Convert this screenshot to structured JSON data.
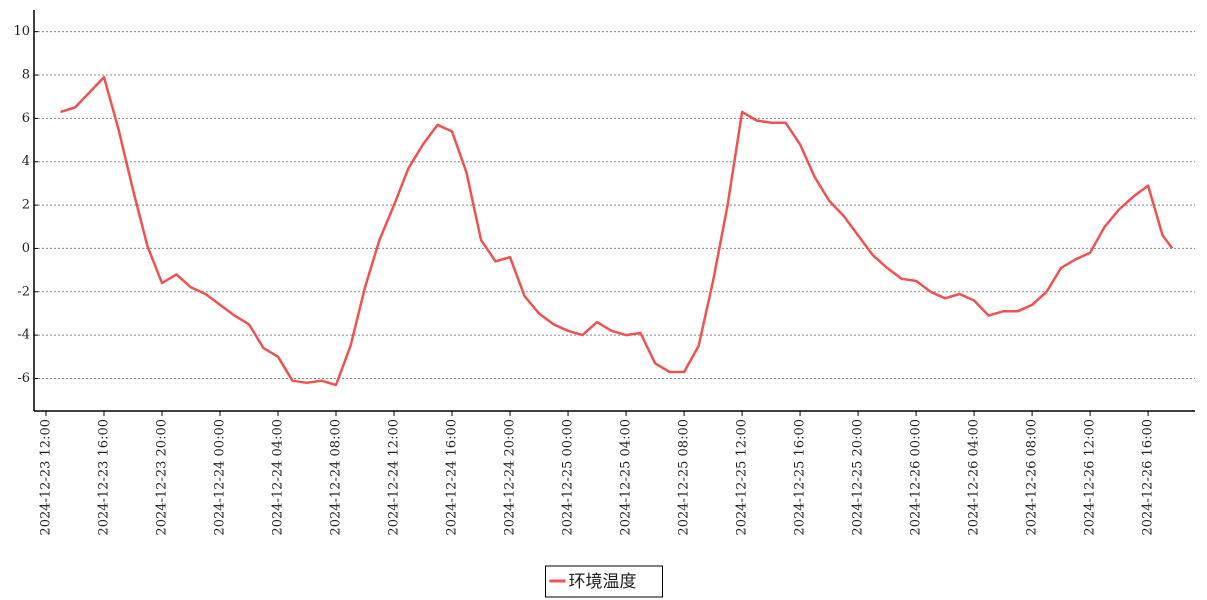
{
  "chart_data": {
    "type": "line",
    "xlim": [
      "2024-12-23 11:27",
      "2024-12-26 19:14"
    ],
    "ylim": [
      -7.5,
      11
    ],
    "xticks": [
      "2024-12-23 12:00",
      "2024-12-23 16:00",
      "2024-12-23 20:00",
      "2024-12-24 00:00",
      "2024-12-24 04:00",
      "2024-12-24 08:00",
      "2024-12-24 12:00",
      "2024-12-24 16:00",
      "2024-12-24 20:00",
      "2024-12-25 00:00",
      "2024-12-25 04:00",
      "2024-12-25 08:00",
      "2024-12-25 12:00",
      "2024-12-25 16:00",
      "2024-12-25 20:00",
      "2024-12-26 00:00",
      "2024-12-26 04:00",
      "2024-12-26 08:00",
      "2024-12-26 12:00",
      "2024-12-26 16:00"
    ],
    "yticks": [
      -6,
      -4,
      -2,
      0,
      2,
      4,
      6,
      8,
      10
    ],
    "grid": true,
    "legend": "bottom",
    "x": [
      "2024-12-23 13:00",
      "2024-12-23 14:00",
      "2024-12-23 15:00",
      "2024-12-23 16:00",
      "2024-12-23 17:00",
      "2024-12-23 18:00",
      "2024-12-23 19:00",
      "2024-12-23 20:00",
      "2024-12-23 21:00",
      "2024-12-23 22:00",
      "2024-12-23 23:00",
      "2024-12-24 00:00",
      "2024-12-24 01:00",
      "2024-12-24 02:00",
      "2024-12-24 03:00",
      "2024-12-24 04:00",
      "2024-12-24 05:00",
      "2024-12-24 06:00",
      "2024-12-24 07:00",
      "2024-12-24 08:00",
      "2024-12-24 09:00",
      "2024-12-24 10:00",
      "2024-12-24 11:00",
      "2024-12-24 12:00",
      "2024-12-24 13:00",
      "2024-12-24 14:00",
      "2024-12-24 15:00",
      "2024-12-24 16:00",
      "2024-12-24 17:00",
      "2024-12-24 18:00",
      "2024-12-24 19:00",
      "2024-12-24 20:00",
      "2024-12-24 21:00",
      "2024-12-24 22:00",
      "2024-12-24 23:00",
      "2024-12-25 00:00",
      "2024-12-25 01:00",
      "2024-12-25 02:00",
      "2024-12-25 03:00",
      "2024-12-25 04:00",
      "2024-12-25 05:00",
      "2024-12-25 06:00",
      "2024-12-25 07:00",
      "2024-12-25 08:00",
      "2024-12-25 09:00",
      "2024-12-25 10:00",
      "2024-12-25 11:00",
      "2024-12-25 12:00",
      "2024-12-25 13:00",
      "2024-12-25 14:00",
      "2024-12-25 15:00",
      "2024-12-25 16:00",
      "2024-12-25 17:00",
      "2024-12-25 18:00",
      "2024-12-25 19:00",
      "2024-12-25 20:00",
      "2024-12-25 21:00",
      "2024-12-25 22:00",
      "2024-12-25 23:00",
      "2024-12-26 00:00",
      "2024-12-26 01:00",
      "2024-12-26 02:00",
      "2024-12-26 03:00",
      "2024-12-26 04:00",
      "2024-12-26 05:00",
      "2024-12-26 06:00",
      "2024-12-26 07:00",
      "2024-12-26 08:00",
      "2024-12-26 09:00",
      "2024-12-26 10:00",
      "2024-12-26 11:00",
      "2024-12-26 12:00",
      "2024-12-26 13:00",
      "2024-12-26 14:00",
      "2024-12-26 15:00",
      "2024-12-26 16:00",
      "2024-12-26 17:00",
      "2024-12-26 17:40"
    ],
    "series": [
      {
        "name": "环境温度",
        "color": "#f05252",
        "values": [
          6.3,
          6.5,
          7.2,
          7.9,
          5.5,
          2.7,
          0.1,
          -1.6,
          -1.2,
          -1.8,
          -2.1,
          -2.6,
          -3.1,
          -3.5,
          -4.6,
          -5.0,
          -6.1,
          -6.2,
          -6.1,
          -6.3,
          -4.5,
          -1.8,
          0.4,
          2.0,
          3.7,
          4.8,
          5.7,
          5.4,
          3.5,
          0.4,
          -0.6,
          -0.4,
          -2.2,
          -3.0,
          -3.5,
          -3.8,
          -4.0,
          -3.4,
          -3.8,
          -4.0,
          -3.9,
          -5.3,
          -5.7,
          -5.7,
          -4.5,
          -1.5,
          2.0,
          6.3,
          5.9,
          5.8,
          5.8,
          4.8,
          3.3,
          2.2,
          1.5,
          0.6,
          -0.3,
          -0.9,
          -1.4,
          -1.5,
          -2.0,
          -2.3,
          -2.1,
          -2.4,
          -3.1,
          -2.9,
          -2.9,
          -2.6,
          -2.0,
          -0.9,
          -0.5,
          -0.2,
          1.0,
          1.8,
          2.4,
          2.9,
          0.6,
          0.0
        ]
      }
    ]
  }
}
